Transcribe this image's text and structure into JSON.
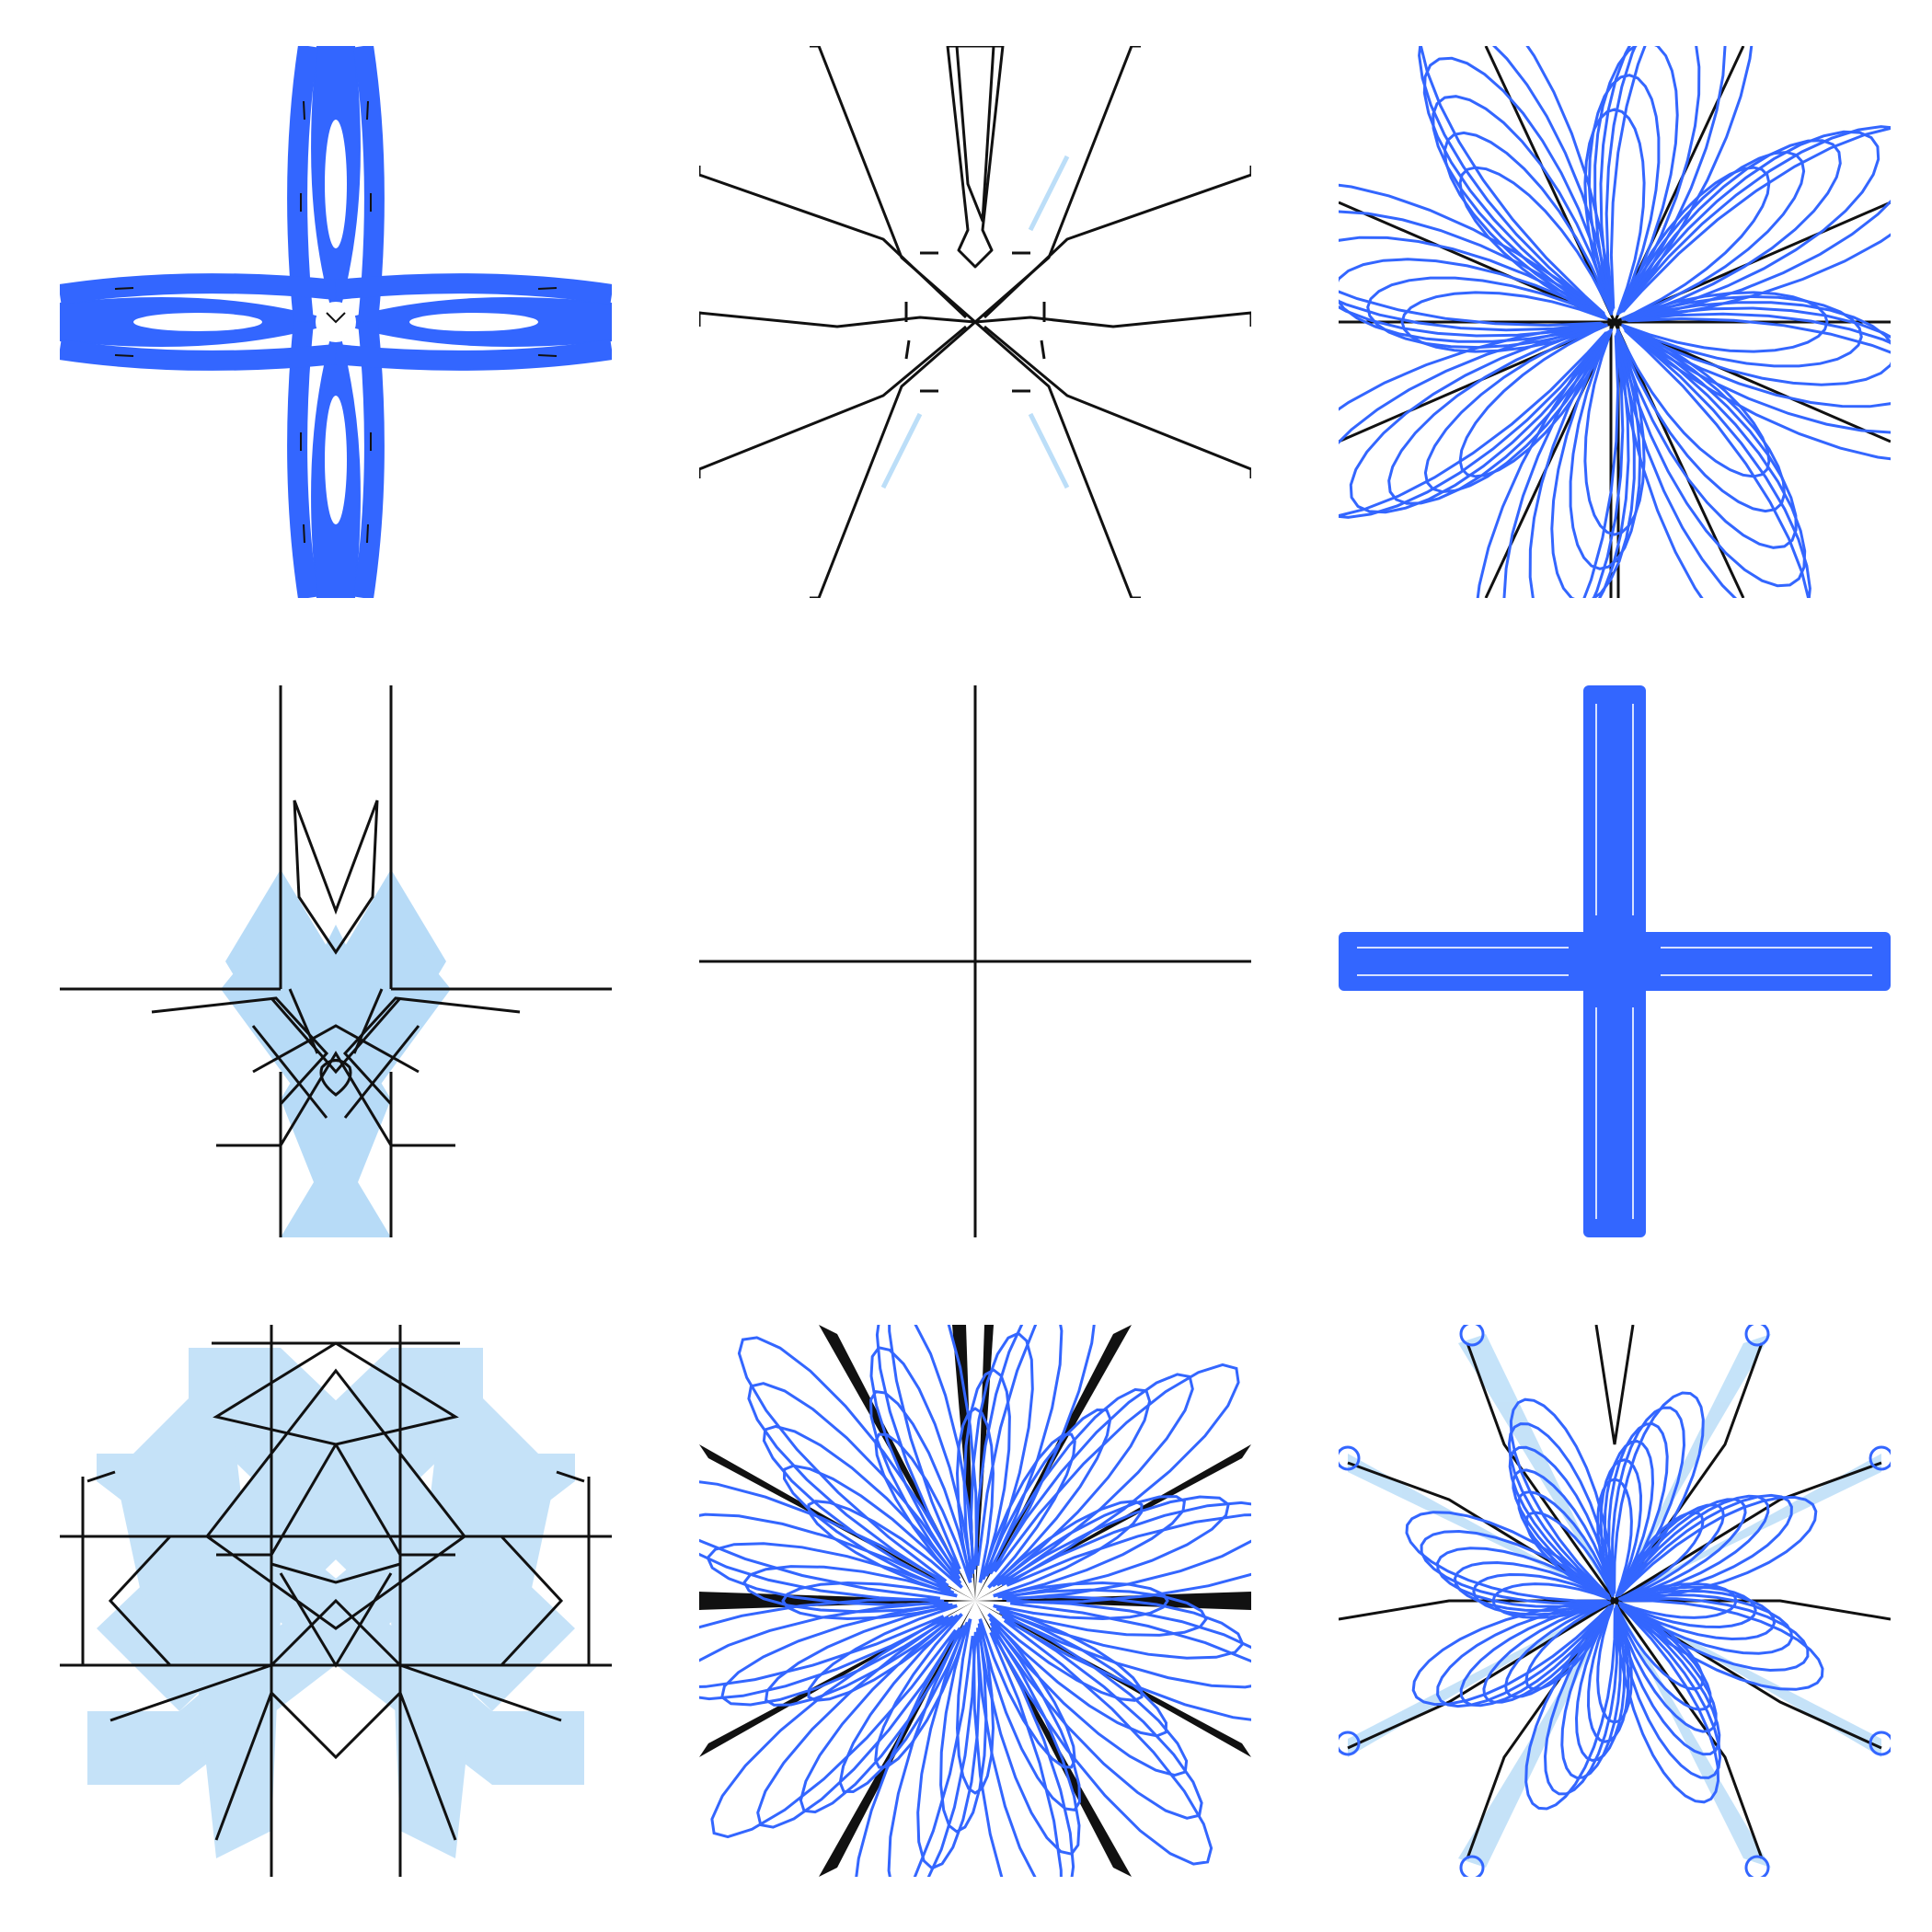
{
  "title": "",
  "palette": {
    "blue": "#3366ff",
    "light_blue": "#9fd0f5",
    "black": "#111111",
    "background": "#ffffff"
  },
  "tiles": [
    {
      "id": "tile-1",
      "motif": "blue-thick-four-point-star"
    },
    {
      "id": "tile-2",
      "motif": "black-spiky-starburst"
    },
    {
      "id": "tile-3",
      "motif": "blue-looped-rosette"
    },
    {
      "id": "tile-4",
      "motif": "black-light-blue-geometric-knot"
    },
    {
      "id": "tile-5",
      "motif": "black-crosshair"
    },
    {
      "id": "tile-6",
      "motif": "blue-thick-cross"
    },
    {
      "id": "tile-7",
      "motif": "black-light-blue-octagonal-lattice"
    },
    {
      "id": "tile-8",
      "motif": "blue-black-dense-starburst"
    },
    {
      "id": "tile-9",
      "motif": "blue-looped-flower"
    }
  ]
}
